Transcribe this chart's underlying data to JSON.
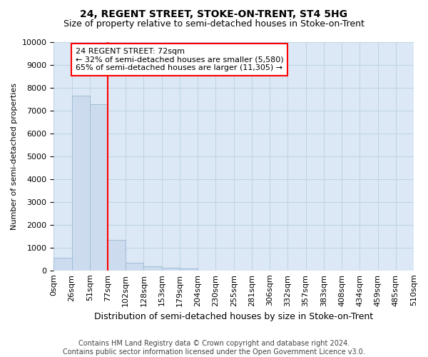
{
  "title": "24, REGENT STREET, STOKE-ON-TRENT, ST4 5HG",
  "subtitle": "Size of property relative to semi-detached houses in Stoke-on-Trent",
  "xlabel": "Distribution of semi-detached houses by size in Stoke-on-Trent",
  "ylabel": "Number of semi-detached properties",
  "footer_line1": "Contains HM Land Registry data © Crown copyright and database right 2024.",
  "footer_line2": "Contains public sector information licensed under the Open Government Licence v3.0.",
  "bar_values": [
    560,
    7650,
    7280,
    1340,
    340,
    175,
    110,
    80,
    0,
    0,
    0,
    0,
    0,
    0,
    0,
    0,
    0,
    0,
    0,
    0
  ],
  "x_labels": [
    "0sqm",
    "26sqm",
    "51sqm",
    "77sqm",
    "102sqm",
    "128sqm",
    "153sqm",
    "179sqm",
    "204sqm",
    "230sqm",
    "255sqm",
    "281sqm",
    "306sqm",
    "332sqm",
    "357sqm",
    "383sqm",
    "408sqm",
    "434sqm",
    "459sqm",
    "485sqm",
    "510sqm"
  ],
  "bar_color": "#ccdcee",
  "bar_edge_color": "#a0bcd8",
  "annotation_text_line1": "24 REGENT STREET: 72sqm",
  "annotation_text_line2": "← 32% of semi-detached houses are smaller (5,580)",
  "annotation_text_line3": "65% of semi-detached houses are larger (11,305) →",
  "ylim": [
    0,
    10000
  ],
  "yticks": [
    0,
    1000,
    2000,
    3000,
    4000,
    5000,
    6000,
    7000,
    8000,
    9000,
    10000
  ],
  "annotation_box_facecolor": "white",
  "annotation_box_edgecolor": "red",
  "red_line_color": "red",
  "red_line_x": 3.0,
  "plot_bg_color": "#dce8f5",
  "fig_bg_color": "white",
  "grid_color": "#b8cfe0",
  "title_fontsize": 10,
  "subtitle_fontsize": 9,
  "ylabel_fontsize": 8,
  "xlabel_fontsize": 9,
  "tick_fontsize": 8,
  "annot_fontsize": 8,
  "footer_fontsize": 7
}
